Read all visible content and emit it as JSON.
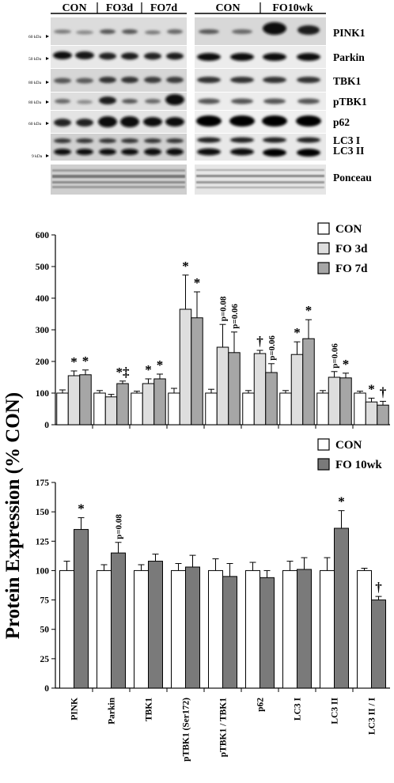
{
  "blot": {
    "group_labels_left": [
      "CON",
      "FO3d",
      "FO7d"
    ],
    "group_labels_right": [
      "CON",
      "FO10wk"
    ],
    "protein_labels": [
      "PINK1",
      "Parkin",
      "TBK1",
      "pTBK1",
      "p62",
      "LC3 I",
      "LC3 II",
      "Ponceau"
    ],
    "kda_labels": [
      "60 kDa",
      "50 kDa",
      "80 kDa",
      "80 kDa",
      "60 kDa",
      "9 kDa"
    ]
  },
  "y_axis_label": "Protein Expression (% CON)",
  "chart_data": [
    {
      "type": "bar",
      "ylim": [
        0,
        600
      ],
      "yticks": [
        0,
        100,
        200,
        300,
        400,
        500,
        600
      ],
      "categories": [
        "PINK",
        "Parkin",
        "TBK1",
        "pTBK1 (Ser172)",
        "pTBK1 / TBK1",
        "p62",
        "LC3 I",
        "LC3 II",
        "LC3 II / I"
      ],
      "series": [
        {
          "name": "CON",
          "color": "#ffffff",
          "values": [
            100,
            100,
            100,
            100,
            100,
            100,
            100,
            100,
            100
          ],
          "errors": [
            10,
            8,
            6,
            15,
            12,
            8,
            8,
            8,
            6
          ]
        },
        {
          "name": "FO 3d",
          "color": "#dedede",
          "values": [
            155,
            88,
            130,
            365,
            245,
            225,
            222,
            150,
            72
          ],
          "errors": [
            15,
            8,
            15,
            108,
            72,
            10,
            40,
            18,
            12
          ]
        },
        {
          "name": "FO 7d",
          "color": "#a6a6a6",
          "values": [
            158,
            130,
            145,
            338,
            228,
            165,
            272,
            148,
            62
          ],
          "errors": [
            15,
            8,
            15,
            82,
            65,
            28,
            60,
            15,
            12
          ]
        }
      ],
      "annotations": [
        {
          "cat": 0,
          "series": 1,
          "text": "*"
        },
        {
          "cat": 0,
          "series": 2,
          "text": "*"
        },
        {
          "cat": 1,
          "series": 2,
          "text": "*‡"
        },
        {
          "cat": 2,
          "series": 1,
          "text": "*"
        },
        {
          "cat": 2,
          "series": 2,
          "text": "*"
        },
        {
          "cat": 3,
          "series": 1,
          "text": "*"
        },
        {
          "cat": 3,
          "series": 2,
          "text": "*"
        },
        {
          "cat": 4,
          "series": 1,
          "text": "p=0.08",
          "vertical": true
        },
        {
          "cat": 4,
          "series": 2,
          "text": "p=0.06",
          "vertical": true
        },
        {
          "cat": 5,
          "series": 1,
          "text": "†"
        },
        {
          "cat": 5,
          "series": 2,
          "text": "p=0.06",
          "vertical": true
        },
        {
          "cat": 6,
          "series": 1,
          "text": "*"
        },
        {
          "cat": 6,
          "series": 2,
          "text": "*"
        },
        {
          "cat": 7,
          "series": 1,
          "text": "p=0.06",
          "vertical": true
        },
        {
          "cat": 7,
          "series": 2,
          "text": "*"
        },
        {
          "cat": 8,
          "series": 1,
          "text": "*"
        },
        {
          "cat": 8,
          "series": 2,
          "text": "†"
        }
      ],
      "legend": {
        "placement": "top-right",
        "entries": [
          "CON",
          "FO 3d",
          "FO 7d"
        ]
      }
    },
    {
      "type": "bar",
      "ylim": [
        0,
        175
      ],
      "yticks": [
        0,
        25,
        50,
        75,
        100,
        125,
        150,
        175
      ],
      "categories": [
        "PINK",
        "Parkin",
        "TBK1",
        "pTBK1 (Ser172)",
        "pTBK1 / TBK1",
        "p62",
        "LC3 I",
        "LC3 II",
        "LC3 II / I"
      ],
      "series": [
        {
          "name": "CON",
          "color": "#ffffff",
          "values": [
            100,
            100,
            100,
            100,
            100,
            100,
            100,
            100,
            100
          ],
          "errors": [
            8,
            5,
            5,
            6,
            10,
            7,
            8,
            11,
            2
          ]
        },
        {
          "name": "FO 10wk",
          "color": "#7a7a7a",
          "values": [
            135,
            115,
            108,
            103,
            95,
            94,
            101,
            136,
            75
          ],
          "errors": [
            10,
            9,
            6,
            10,
            11,
            6,
            10,
            15,
            3
          ]
        }
      ],
      "annotations": [
        {
          "cat": 0,
          "series": 1,
          "text": "*"
        },
        {
          "cat": 1,
          "series": 1,
          "text": "p=0.08",
          "vertical": true
        },
        {
          "cat": 7,
          "series": 1,
          "text": "*"
        },
        {
          "cat": 8,
          "series": 1,
          "text": "†"
        }
      ],
      "legend": {
        "placement": "top-right",
        "entries": [
          "CON",
          "FO 10wk"
        ]
      }
    }
  ]
}
